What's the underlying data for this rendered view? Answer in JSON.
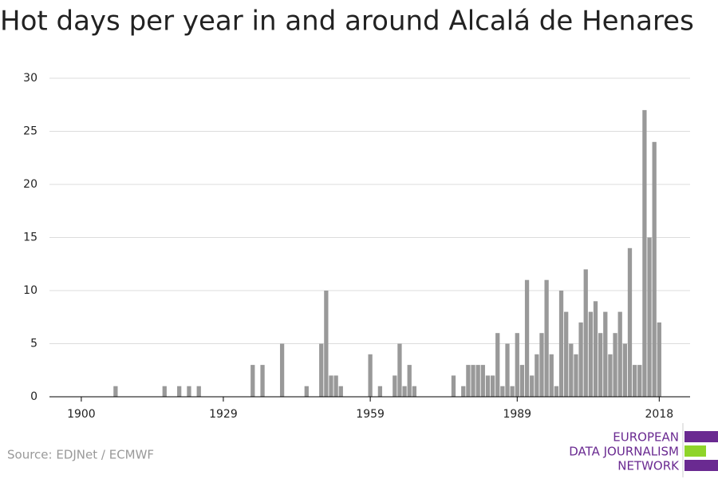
{
  "chart_data": {
    "type": "bar",
    "title": "Hot days per year in and around Alcalá de Henares",
    "source": "Source: EDJNet / ECMWF",
    "logo": [
      "EUROPEAN",
      "DATA JOURNALISM",
      "NETWORK"
    ],
    "color": "#999999",
    "x": [
      1900,
      1901,
      1902,
      1903,
      1904,
      1905,
      1906,
      1907,
      1908,
      1909,
      1910,
      1911,
      1912,
      1913,
      1914,
      1915,
      1916,
      1917,
      1918,
      1919,
      1920,
      1921,
      1922,
      1923,
      1924,
      1925,
      1926,
      1927,
      1928,
      1929,
      1930,
      1931,
      1932,
      1933,
      1934,
      1935,
      1936,
      1937,
      1938,
      1939,
      1940,
      1941,
      1942,
      1943,
      1944,
      1945,
      1946,
      1947,
      1948,
      1949,
      1950,
      1951,
      1952,
      1953,
      1954,
      1955,
      1956,
      1957,
      1958,
      1959,
      1960,
      1961,
      1962,
      1963,
      1964,
      1965,
      1966,
      1967,
      1968,
      1969,
      1970,
      1971,
      1972,
      1973,
      1974,
      1975,
      1976,
      1977,
      1978,
      1979,
      1980,
      1981,
      1982,
      1983,
      1984,
      1985,
      1986,
      1987,
      1988,
      1989,
      1990,
      1991,
      1992,
      1993,
      1994,
      1995,
      1996,
      1997,
      1998,
      1999,
      2000,
      2001,
      2002,
      2003,
      2004,
      2005,
      2006,
      2007,
      2008,
      2009,
      2010,
      2011,
      2012,
      2013,
      2014,
      2015,
      2016,
      2017,
      2018
    ],
    "values": [
      0,
      0,
      0,
      0,
      0,
      0,
      0,
      1,
      0,
      0,
      0,
      0,
      0,
      0,
      0,
      0,
      0,
      1,
      0,
      0,
      1,
      0,
      1,
      0,
      1,
      0,
      0,
      0,
      0,
      0,
      0,
      0,
      0,
      0,
      0,
      3,
      0,
      3,
      0,
      0,
      0,
      5,
      0,
      0,
      0,
      0,
      1,
      0,
      0,
      5,
      10,
      2,
      2,
      1,
      0,
      0,
      0,
      0,
      0,
      4,
      0,
      1,
      0,
      0,
      2,
      5,
      1,
      3,
      1,
      0,
      0,
      0,
      0,
      0,
      0,
      0,
      2,
      0,
      1,
      3,
      3,
      3,
      3,
      2,
      2,
      6,
      1,
      5,
      1,
      6,
      3,
      11,
      2,
      4,
      6,
      11,
      4,
      1,
      10,
      8,
      5,
      4,
      7,
      12,
      8,
      9,
      6,
      8,
      4,
      6,
      8,
      5,
      14,
      3,
      3,
      27,
      15,
      24,
      7
    ],
    "xlim": [
      1893.5,
      2024.3
    ],
    "xticks": [
      1900,
      1929,
      1959,
      1989,
      2018
    ],
    "ylim": [
      0,
      30
    ],
    "yticks": [
      0,
      5,
      10,
      15,
      20,
      25,
      30
    ],
    "grid": true
  }
}
